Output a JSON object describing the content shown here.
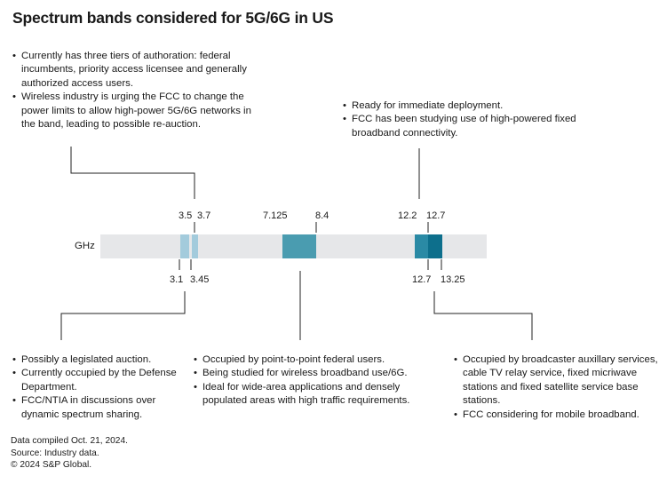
{
  "title": "Spectrum bands considered for 5G/6G in US",
  "axis_label": "GHz",
  "colors": {
    "track": "#e6e7e9",
    "band_3_1": "#a3cbdc",
    "band_3_45": "#a3cbdc",
    "band_7": "#4a9cb0",
    "band_12_2": "#2a8aa5",
    "band_12_7": "#0d6f8c",
    "connector": "#222222"
  },
  "ticks_top": [
    "3.5",
    "3.7",
    "7.125",
    "8.4",
    "12.2",
    "12.7"
  ],
  "ticks_bottom": [
    "3.1",
    "3.45",
    "12.7",
    "13.25"
  ],
  "notes": {
    "band_3_45": [
      "Currently has three tiers of authoration: federal incumbents, priority access licensee and generally authorized access users.",
      "Wireless industry is urging the FCC to change the power limits to allow high-power 5G/6G networks in the band, leading to possible re-auction."
    ],
    "band_12_2": [
      "Ready for immediate deployment.",
      "FCC has been studying use of high-powered fixed broadband connectivity."
    ],
    "band_3_1": [
      "Possibly a legislated auction.",
      "Currently occupied by the Defense Department.",
      "FCC/NTIA in discussions over dynamic spectrum sharing."
    ],
    "band_7": [
      "Occupied by point-to-point federal users.",
      "Being studied for wireless broadband use/6G.",
      "Ideal for wide-area applications and densely populated areas with high traffic requirements."
    ],
    "band_12_7": [
      "Occupied by broadcaster auxillary services, cable TV relay service, fixed micriwave stations and fixed satellite service base stations.",
      "FCC considering for mobile broadband."
    ]
  },
  "footer": {
    "line1": "Data compiled Oct. 21, 2024.",
    "line2": "Source: Industry data.",
    "line3": "© 2024 S&P Global."
  }
}
